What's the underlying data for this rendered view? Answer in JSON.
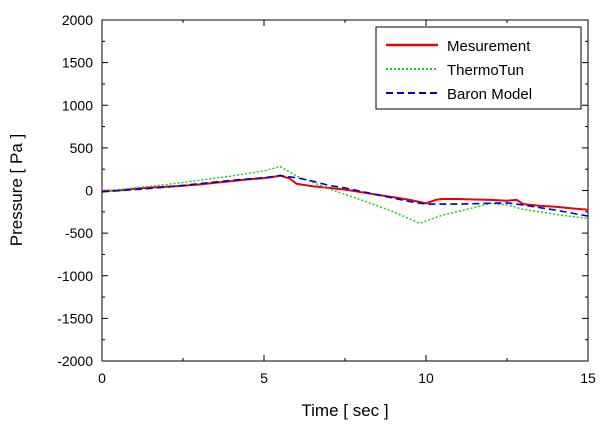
{
  "chart_data": {
    "type": "line",
    "xlabel": "Time [ sec ]",
    "ylabel": "Pressure [ Pa ]",
    "xlim": [
      0,
      15
    ],
    "ylim": [
      -2000,
      2000
    ],
    "x_ticks": [
      0,
      5,
      10,
      15
    ],
    "y_ticks": [
      2000,
      1500,
      1000,
      500,
      0,
      -500,
      -1000,
      -1500,
      -2000
    ],
    "grid": false,
    "legend_position": "top-right",
    "series": [
      {
        "name": "Mesurement",
        "color": "#e8000b",
        "style": "solid",
        "points": [
          [
            0,
            -5
          ],
          [
            0.5,
            0
          ],
          [
            1,
            20
          ],
          [
            1.5,
            35
          ],
          [
            2,
            45
          ],
          [
            2.5,
            55
          ],
          [
            3,
            70
          ],
          [
            3.5,
            90
          ],
          [
            4,
            110
          ],
          [
            4.5,
            130
          ],
          [
            5,
            145
          ],
          [
            5.3,
            160
          ],
          [
            5.5,
            175
          ],
          [
            5.8,
            140
          ],
          [
            6,
            80
          ],
          [
            6.5,
            50
          ],
          [
            7,
            30
          ],
          [
            7.5,
            10
          ],
          [
            8,
            -20
          ],
          [
            8.5,
            -50
          ],
          [
            9,
            -80
          ],
          [
            9.5,
            -110
          ],
          [
            10,
            -150
          ],
          [
            10.3,
            -110
          ],
          [
            10.5,
            -100
          ],
          [
            11,
            -100
          ],
          [
            11.5,
            -105
          ],
          [
            12,
            -110
          ],
          [
            12.5,
            -120
          ],
          [
            12.8,
            -110
          ],
          [
            13,
            -160
          ],
          [
            13.5,
            -180
          ],
          [
            14,
            -190
          ],
          [
            14.5,
            -210
          ],
          [
            15,
            -225
          ]
        ]
      },
      {
        "name": "ThermoTun",
        "color": "#19d21a",
        "style": "dotted",
        "points": [
          [
            0,
            -10
          ],
          [
            1,
            30
          ],
          [
            2,
            70
          ],
          [
            3,
            120
          ],
          [
            4,
            170
          ],
          [
            5,
            230
          ],
          [
            5.5,
            280
          ],
          [
            6,
            170
          ],
          [
            7,
            20
          ],
          [
            8,
            -110
          ],
          [
            9,
            -250
          ],
          [
            9.8,
            -385
          ],
          [
            10.5,
            -290
          ],
          [
            11.5,
            -200
          ],
          [
            12,
            -150
          ],
          [
            12.5,
            -170
          ],
          [
            13,
            -220
          ],
          [
            14,
            -280
          ],
          [
            15,
            -330
          ]
        ]
      },
      {
        "name": "Baron Model",
        "color": "#0000c8",
        "style": "dashed",
        "points": [
          [
            0,
            -15
          ],
          [
            1,
            10
          ],
          [
            2,
            40
          ],
          [
            3,
            80
          ],
          [
            4,
            120
          ],
          [
            5,
            150
          ],
          [
            5.5,
            175
          ],
          [
            6,
            150
          ],
          [
            6.5,
            110
          ],
          [
            7,
            60
          ],
          [
            7.5,
            30
          ],
          [
            8,
            -10
          ],
          [
            8.5,
            -50
          ],
          [
            9,
            -90
          ],
          [
            9.5,
            -130
          ],
          [
            10,
            -160
          ],
          [
            11,
            -160
          ],
          [
            12,
            -150
          ],
          [
            12.5,
            -145
          ],
          [
            13,
            -170
          ],
          [
            14,
            -230
          ],
          [
            15,
            -300
          ]
        ]
      }
    ]
  }
}
